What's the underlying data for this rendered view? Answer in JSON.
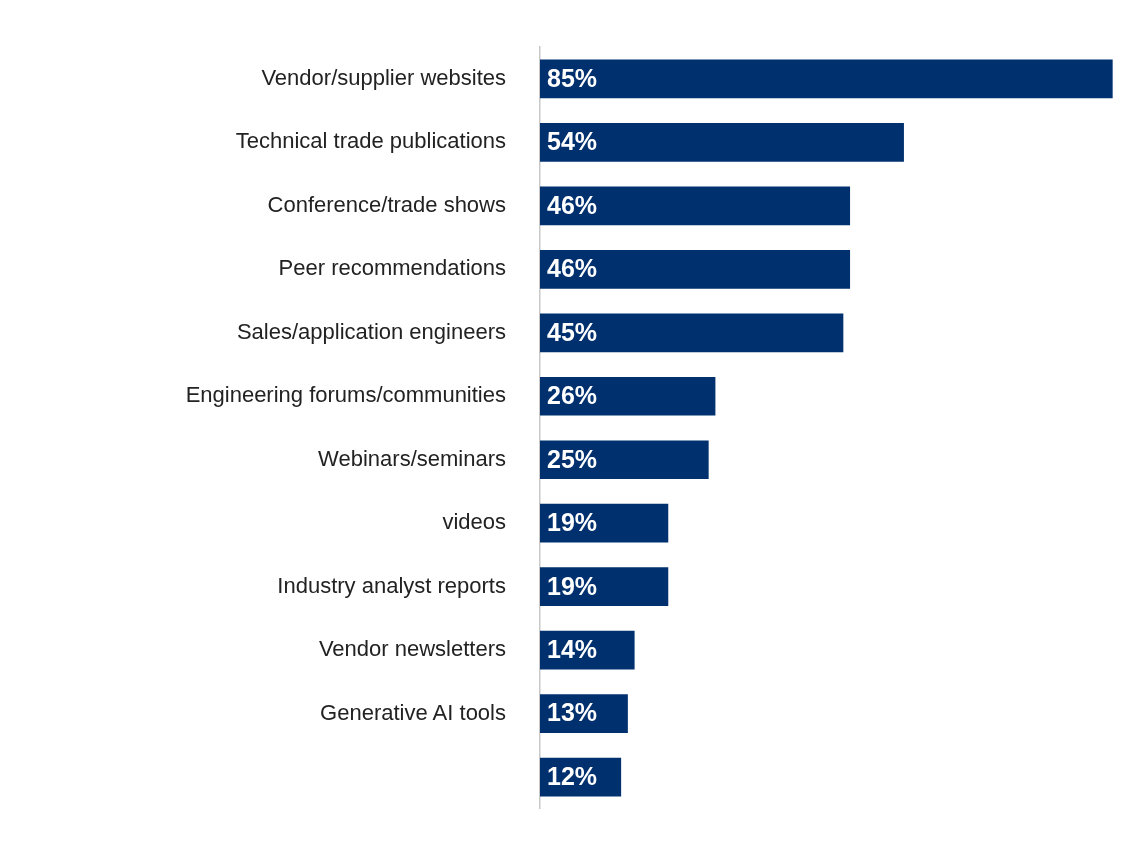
{
  "chart_data": {
    "type": "bar",
    "orientation": "horizontal",
    "categories": [
      "Vendor/supplier websites",
      "Technical trade publications",
      "Conference/trade shows",
      "Peer recommendations",
      "Sales/application engineers",
      "Engineering forums/communities",
      "Webinars/seminars",
      "videos",
      "Industry analyst reports",
      "Vendor newsletters",
      "Generative AI tools",
      null
    ],
    "values": [
      85,
      54,
      46,
      46,
      45,
      26,
      25,
      19,
      19,
      14,
      13,
      12
    ],
    "value_labels": [
      "85%",
      "54%",
      "46%",
      "46%",
      "45%",
      "26%",
      "25%",
      "19%",
      "19%",
      "14%",
      "13%",
      "12%"
    ],
    "color": "#00306e",
    "grid": false,
    "legend": false
  }
}
